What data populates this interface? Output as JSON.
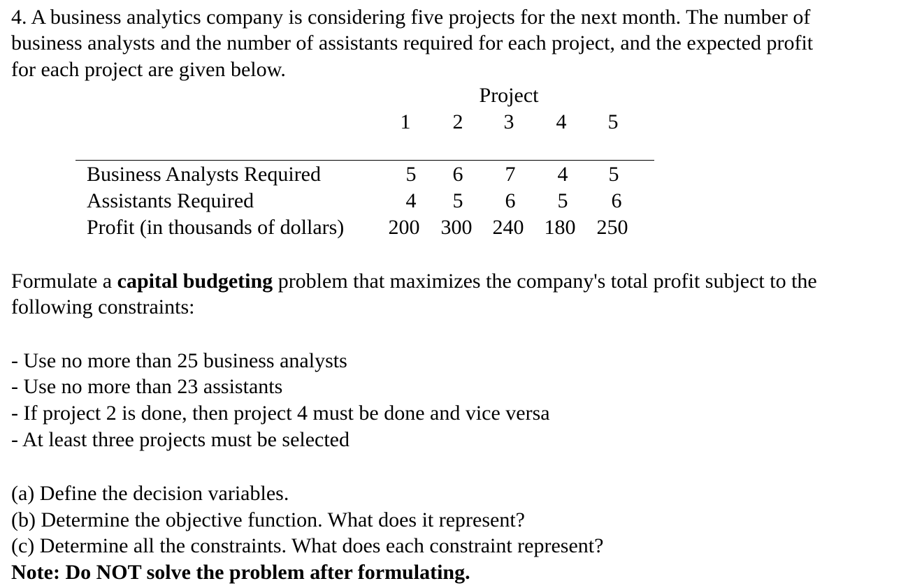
{
  "intro": [
    "4. A business analytics company is considering five projects for the next month.  The number of",
    "business analysts and the number of assistants required for each project, and the expected profit",
    "for each project are given below."
  ],
  "table": {
    "header": "Project",
    "columns": [
      "1",
      "2",
      "3",
      "4",
      "5"
    ],
    "rows": [
      {
        "label": "Business Analysts Required",
        "values": [
          "5",
          "6",
          "7",
          "4",
          "5"
        ]
      },
      {
        "label": "Assistants Required",
        "values": [
          "4",
          "5",
          "6",
          "5",
          "6"
        ]
      },
      {
        "label": "Profit (in thousands of dollars)",
        "values": [
          "200",
          "300",
          "240",
          "180",
          "250"
        ]
      }
    ]
  },
  "formulate": {
    "pre": "Formulate a ",
    "bold": "capital budgeting",
    "post": " problem that maximizes the company's total profit subject to the",
    "line2": "following constraints:"
  },
  "constraints": [
    "- Use no more than 25 business analysts",
    "- Use no more than 23 assistants",
    "- If project 2 is done, then project 4 must be done and vice versa",
    "- At least three projects must be selected"
  ],
  "questions": [
    "(a) Define the decision variables.",
    "(b) Determine the objective function. What does it represent?",
    "(c) Determine all the constraints. What does each constraint represent?"
  ],
  "note": "Note: Do NOT solve the problem after formulating."
}
